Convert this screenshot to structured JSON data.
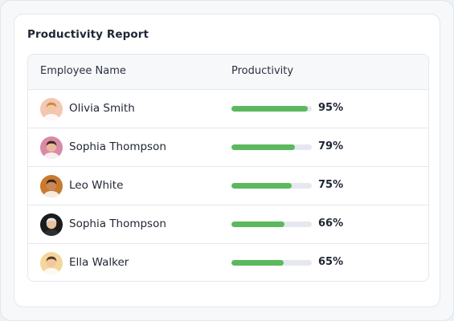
{
  "report": {
    "title": "Productivity Report",
    "columns": {
      "name": "Employee Name",
      "productivity": "Productivity"
    },
    "bar_color": "#5cb85c",
    "track_color": "#e6e8ef",
    "rows": [
      {
        "name": "Olivia Smith",
        "productivity": 95,
        "productivity_label": "95%",
        "avatar_icon": "avatar-icon",
        "avatar_bg": "#f4c7b4"
      },
      {
        "name": "Sophia Thompson",
        "productivity": 79,
        "productivity_label": "79%",
        "avatar_icon": "avatar-icon",
        "avatar_bg": "#d98aa6"
      },
      {
        "name": "Leo White",
        "productivity": 75,
        "productivity_label": "75%",
        "avatar_icon": "avatar-icon",
        "avatar_bg": "#c97a2e"
      },
      {
        "name": "Sophia Thompson",
        "productivity": 66,
        "productivity_label": "66%",
        "avatar_icon": "avatar-icon",
        "avatar_bg": "#1c1c1c"
      },
      {
        "name": "Ella Walker",
        "productivity": 65,
        "productivity_label": "65%",
        "avatar_icon": "avatar-icon",
        "avatar_bg": "#f3d79a"
      }
    ]
  }
}
